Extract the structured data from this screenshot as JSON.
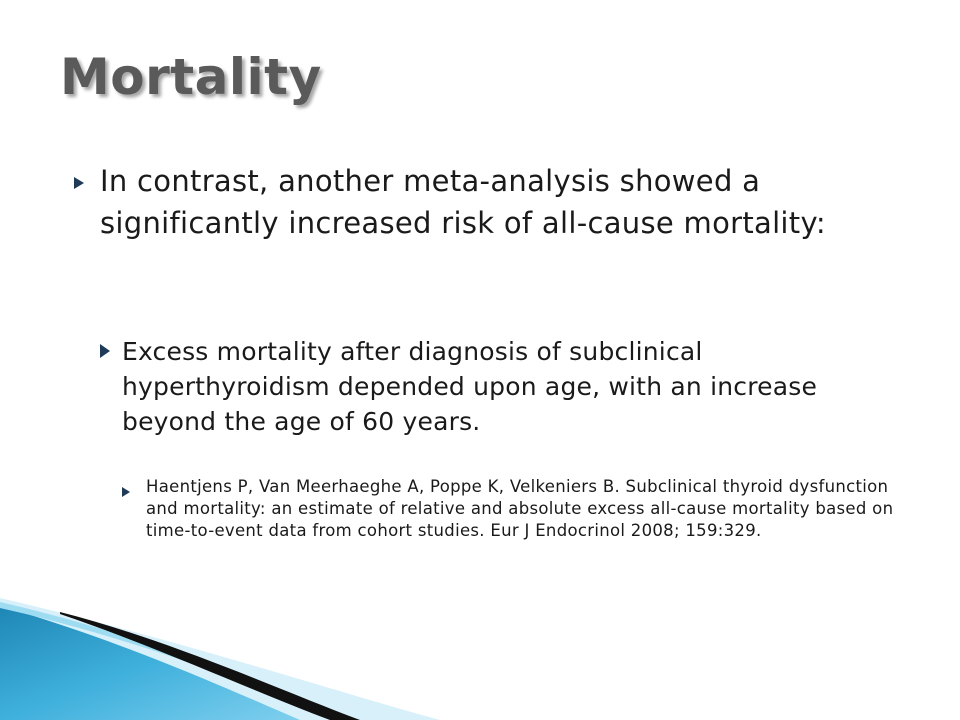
{
  "slide": {
    "title": "Mortality",
    "bullets": [
      {
        "text": "In contrast, another meta-analysis showed a significantly increased risk of all-cause mortality:",
        "icon": "triangle-bullet-icon"
      },
      {
        "text": "Excess mortality after diagnosis of subclinical hyperthyroidism depended upon age, with an increase beyond the age of 60 years.",
        "icon": "triangle-bullet-icon"
      },
      {
        "text": "Haentjens P, Van Meerhaeghe A, Poppe K, Velkeniers B. Subclinical thyroid dysfunction and mortality: an estimate of relative and absolute excess all-cause mortality based on time-to-event data from cohort studies. Eur J Endocrinol 2008; 159:329.",
        "icon": "triangle-bullet-icon"
      }
    ]
  },
  "theme": {
    "title_color": "#5a5a5a",
    "text_color": "#1a1a1a",
    "bullet_color": "#1f3b57",
    "accent_blue_light": "#bfe6f5",
    "accent_blue": "#3fb0dc",
    "accent_blue_dark": "#1e86b5",
    "accent_black": "#111111"
  }
}
